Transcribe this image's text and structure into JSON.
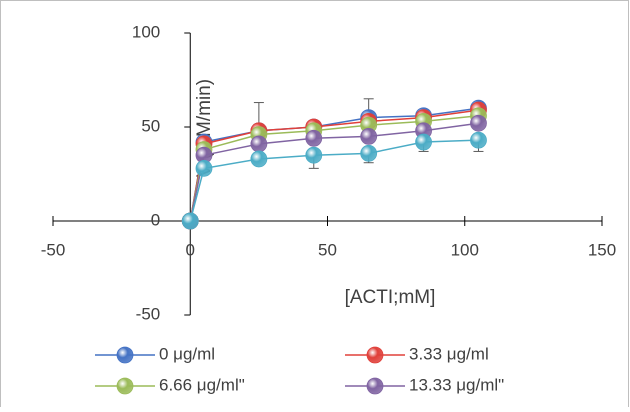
{
  "chart_data": {
    "type": "line",
    "x_label": "[ACTI;mM]",
    "y_label": "V (mM/min)",
    "x": [
      0,
      5,
      25,
      45,
      65,
      85,
      105
    ],
    "series": [
      {
        "name": "0 μg/ml",
        "color": "#4472c4",
        "values": [
          0,
          42,
          48,
          50,
          55,
          56,
          60
        ],
        "errors": [
          0,
          2,
          15,
          3,
          10,
          3,
          3
        ]
      },
      {
        "name": "3.33 μg/ml",
        "color": "#e0403a",
        "values": [
          0,
          41,
          48,
          50,
          53,
          55,
          59
        ]
      },
      {
        "name": "6.66 μg/ml\"",
        "color": "#9bbb59",
        "values": [
          0,
          38,
          46,
          48,
          51,
          53,
          56
        ]
      },
      {
        "name": "13.33 μg/ml\"",
        "color": "#8064a2",
        "values": [
          0,
          35,
          41,
          44,
          45,
          48,
          52
        ]
      },
      {
        "name": "",
        "color": "#4bacc6",
        "values": [
          0,
          28,
          33,
          35,
          36,
          42,
          43
        ],
        "errors": [
          0,
          0,
          0,
          7,
          5,
          5,
          6
        ]
      }
    ],
    "xlim": [
      -50,
      150
    ],
    "xticks": [
      -50,
      0,
      50,
      100,
      150
    ],
    "ylim": [
      -50,
      100
    ],
    "yticks": [
      -50,
      0,
      50,
      100
    ]
  }
}
